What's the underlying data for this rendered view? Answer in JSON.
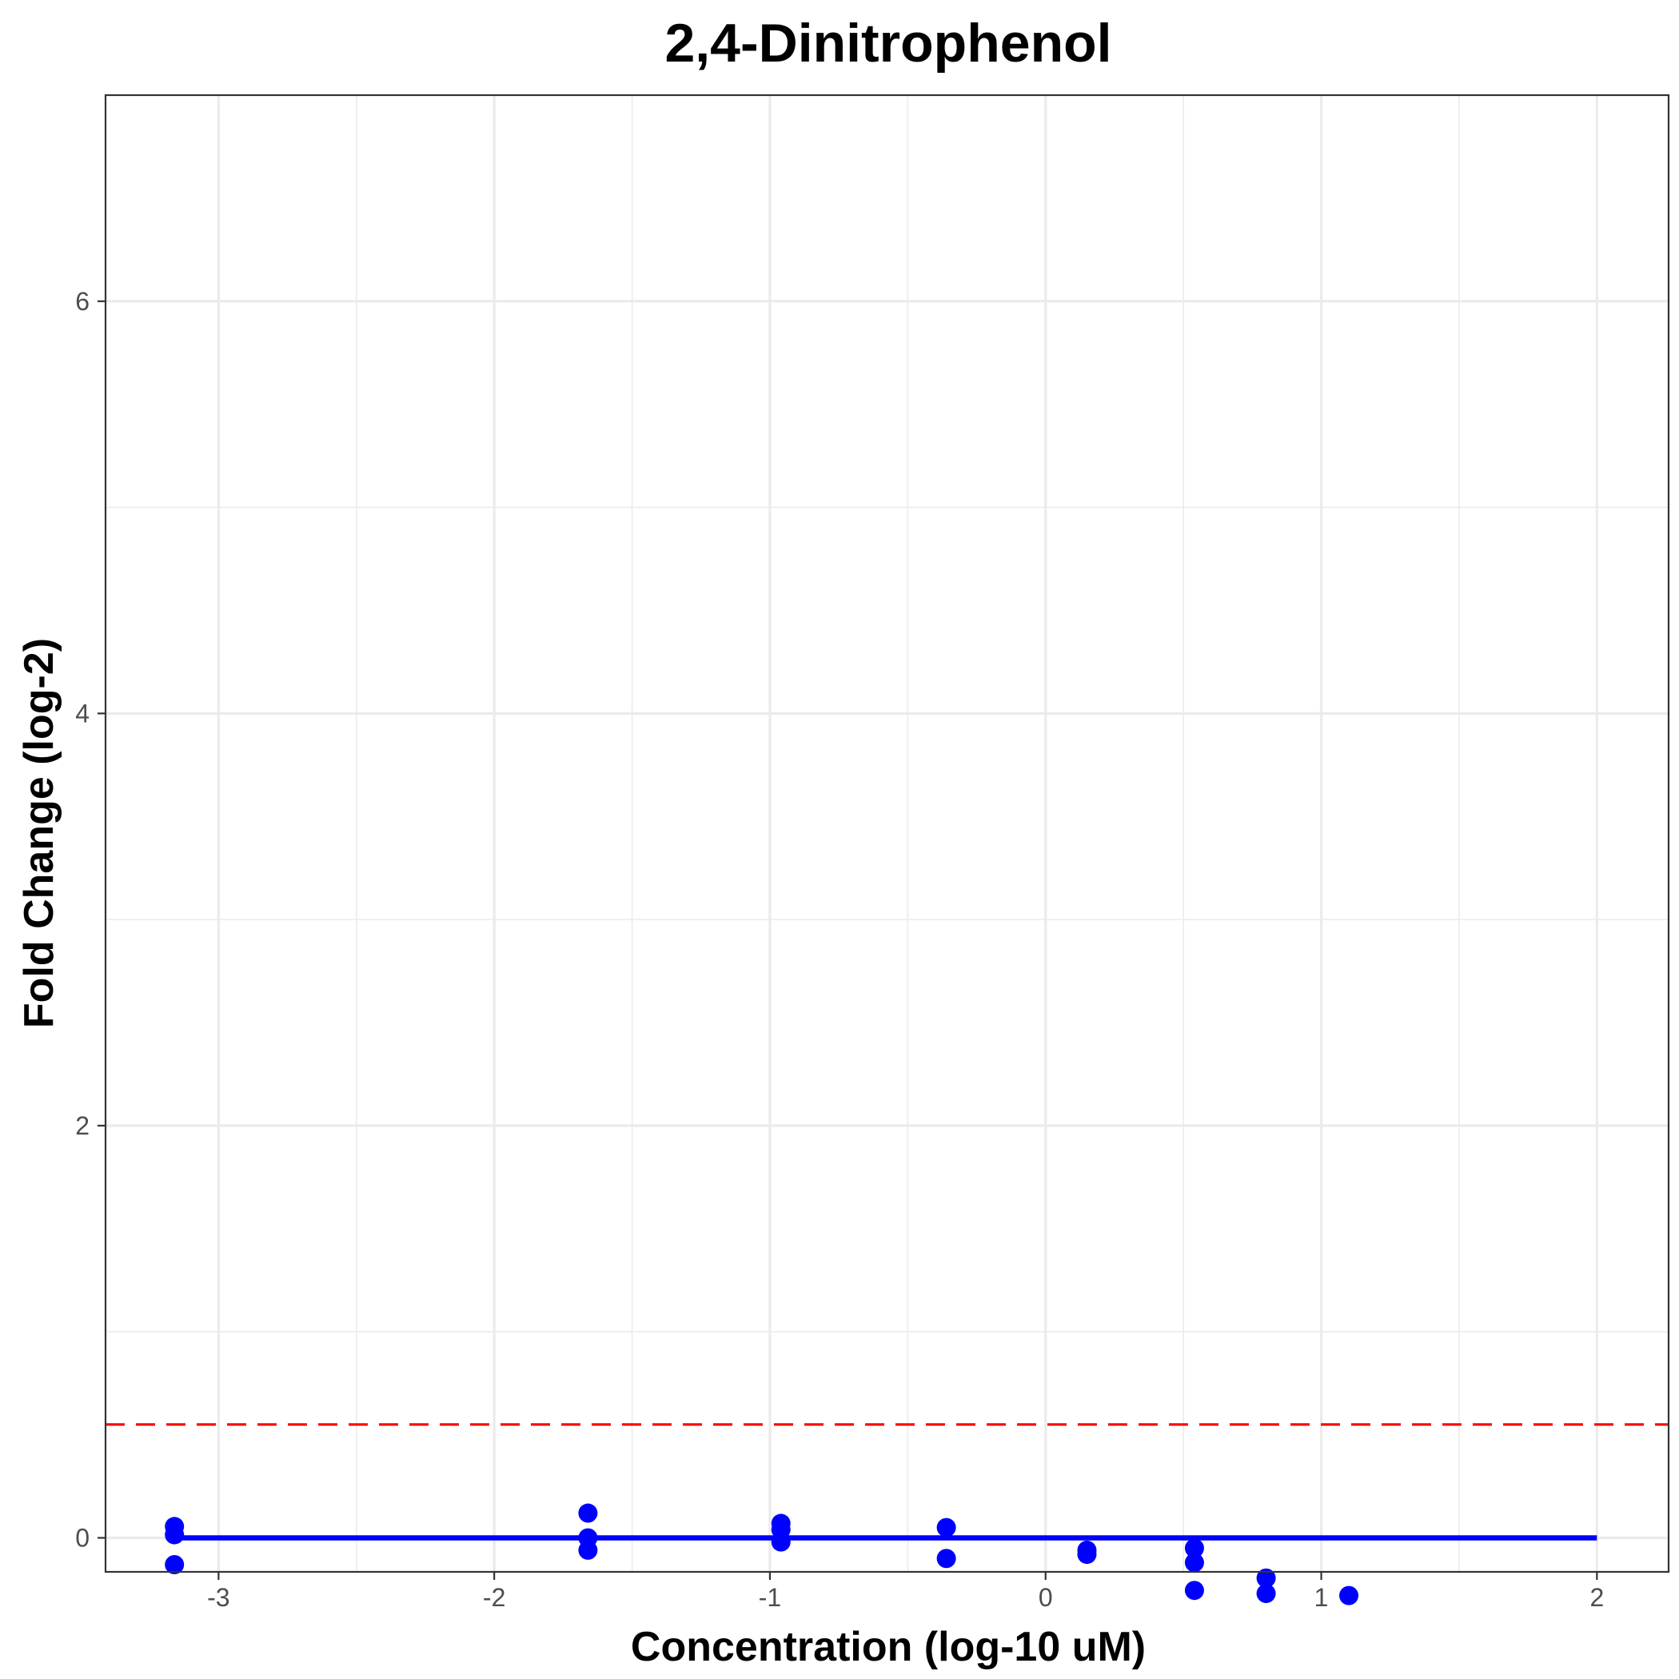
{
  "chart_data": {
    "type": "scatter",
    "title": "2,4-Dinitrophenol",
    "xlabel": "Concentration (log-10 uM)",
    "ylabel": "Fold Change (log-2)",
    "xlim": [
      -3.41,
      2.26
    ],
    "ylim": [
      -0.165,
      7.0
    ],
    "x_ticks": [
      -3,
      -2,
      -1,
      0,
      1,
      2
    ],
    "x_tick_labels": [
      "-3",
      "-2",
      "-1",
      "0",
      "1",
      "2"
    ],
    "y_ticks": [
      0,
      2,
      4,
      6
    ],
    "y_tick_labels": [
      "0",
      "2",
      "4",
      "6"
    ],
    "grid": true,
    "point_color": "#0000ff",
    "series": [
      {
        "type": "points",
        "x": [
          -3.16,
          -3.16,
          -3.16,
          -1.66,
          -1.66,
          -1.66,
          -0.96,
          -0.96,
          -0.96,
          -0.36,
          -0.36,
          0.15,
          0.15,
          0.54,
          0.54,
          0.54,
          0.8,
          0.8,
          1.1
        ],
        "y": [
          0.055,
          0.015,
          -0.13,
          0.12,
          0.0,
          -0.06,
          0.07,
          0.04,
          -0.02,
          0.05,
          -0.1,
          -0.06,
          -0.08,
          -0.05,
          -0.12,
          -0.255,
          -0.195,
          -0.27,
          -0.28
        ]
      },
      {
        "type": "fit-line",
        "color": "#0000ff",
        "x": [
          -3.16,
          2.0
        ],
        "y": [
          0,
          0
        ]
      }
    ],
    "reference_line": {
      "y": 0.55,
      "color": "#ff0000",
      "style": "dashed"
    }
  }
}
